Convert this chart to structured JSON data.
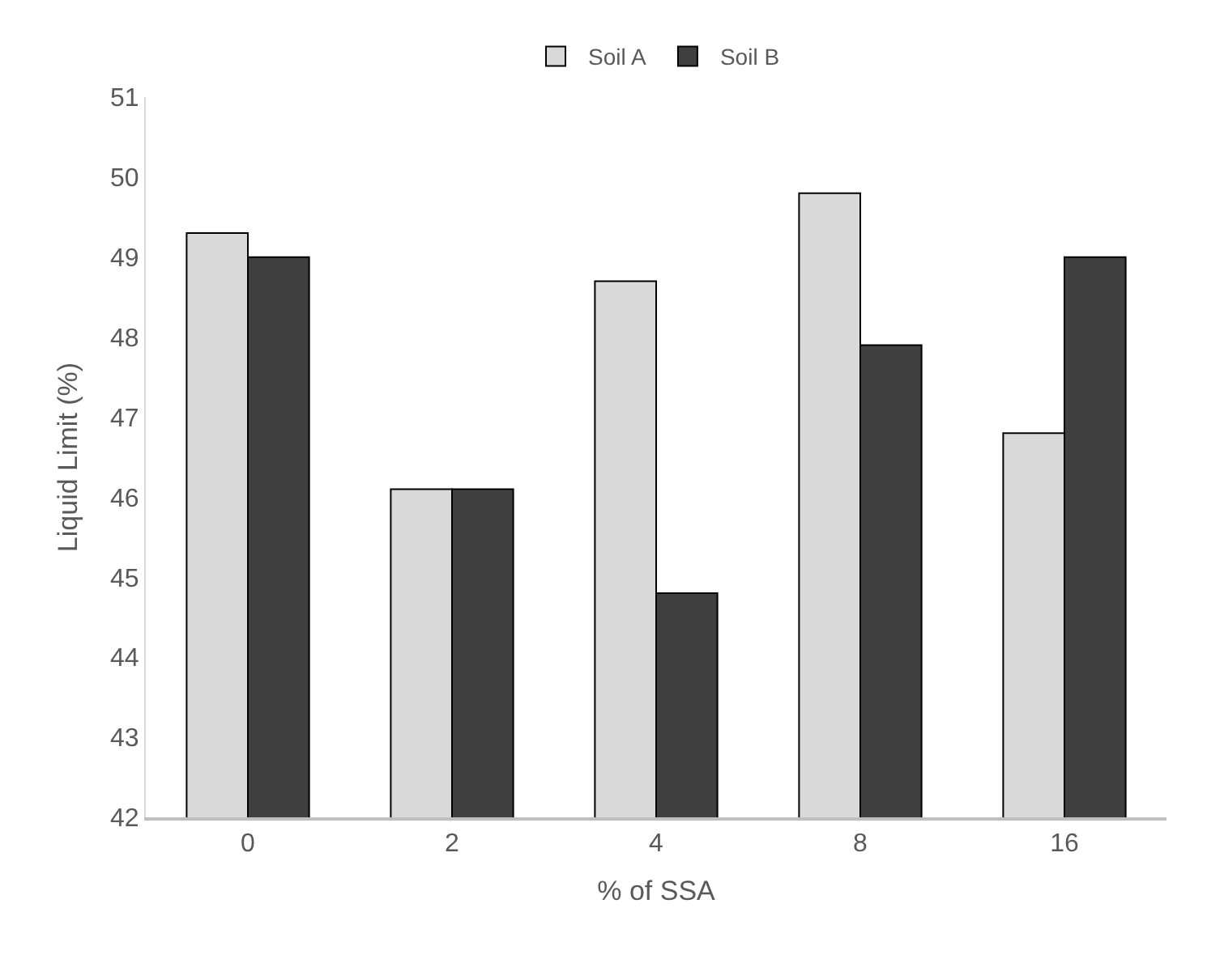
{
  "chart_data": {
    "type": "bar",
    "xlabel": "% of SSA",
    "ylabel": "Liquid Limit (%)",
    "categories": [
      "0",
      "2",
      "4",
      "8",
      "16"
    ],
    "series": [
      {
        "name": "Soil A",
        "color": "#d9d9d9",
        "values": [
          49.3,
          46.1,
          48.7,
          49.8,
          46.8
        ]
      },
      {
        "name": "Soil B",
        "color": "#404040",
        "values": [
          49.0,
          46.1,
          44.8,
          47.9,
          49.0
        ]
      }
    ],
    "ylim": [
      42,
      51
    ],
    "yticks": [
      42,
      43,
      44,
      45,
      46,
      47,
      48,
      49,
      50,
      51
    ],
    "legend": "top"
  }
}
